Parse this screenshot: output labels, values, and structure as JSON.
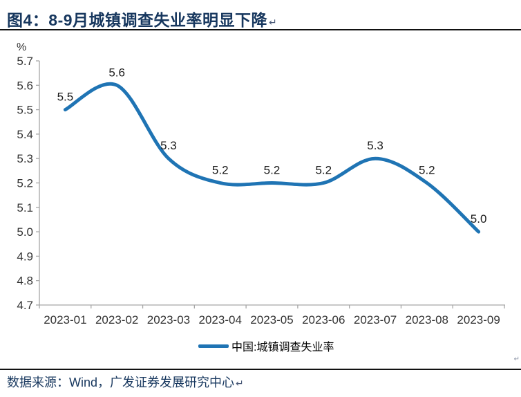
{
  "header": {
    "title": "图4：8-9月城镇调查失业率明显下降",
    "paragraph_mark": "↵"
  },
  "chart_data": {
    "type": "line",
    "unit_label": "%",
    "categories": [
      "2023-01",
      "2023-02",
      "2023-03",
      "2023-04",
      "2023-05",
      "2023-06",
      "2023-07",
      "2023-08",
      "2023-09"
    ],
    "series": [
      {
        "name": "中国:城镇调查失业率",
        "values": [
          5.5,
          5.6,
          5.3,
          5.2,
          5.2,
          5.2,
          5.3,
          5.2,
          5.0
        ]
      }
    ],
    "ylim": [
      4.7,
      5.7
    ],
    "ytick_step": 0.1,
    "data_labels": true,
    "grid": false,
    "legend_position": "bottom",
    "smooth": true
  },
  "legend": {
    "label": "中国:城镇调查失业率"
  },
  "footer": {
    "source": "数据来源：Wind，广发证券发展研究中心",
    "paragraph_mark": "↵"
  },
  "colors": {
    "line": "#1F74B4",
    "title_text": "#17375E",
    "axis_line": "#A6A6A6",
    "tick_text": "#333333",
    "data_label_text": "#1a1a1a",
    "rule": "#111111"
  }
}
